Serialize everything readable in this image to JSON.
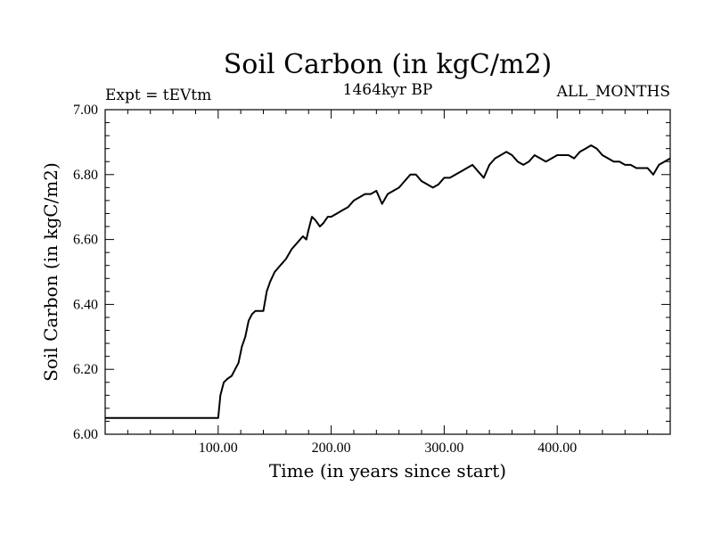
{
  "header": {
    "title": "Soil Carbon (in kgC/m2)",
    "experiment": "Expt = tEVtm",
    "period": "1464kyr BP",
    "months": "ALL_MONTHS"
  },
  "chart_data": {
    "type": "line",
    "title": "Soil Carbon (in kgC/m2)",
    "xlabel": "Time (in years since start)",
    "ylabel": "Soil Carbon (in kgC/m2)",
    "xlim": [
      0,
      500
    ],
    "ylim": [
      6.0,
      7.0
    ],
    "x_ticks": [
      100,
      200,
      300,
      400
    ],
    "x_tick_labels": [
      "100.00",
      "200.00",
      "300.00",
      "400.00"
    ],
    "y_ticks": [
      6.0,
      6.2,
      6.4,
      6.6,
      6.8,
      7.0
    ],
    "y_tick_labels": [
      "6.00",
      "6.20",
      "6.40",
      "6.60",
      "6.80",
      "7.00"
    ],
    "grid": false,
    "series": [
      {
        "name": "Soil Carbon",
        "color": "#000000",
        "x": [
          0,
          50,
          99,
          100,
          102,
          105,
          108,
          112,
          115,
          118,
          121,
          124,
          127,
          130,
          133,
          136,
          140,
          143,
          146,
          150,
          155,
          160,
          165,
          170,
          175,
          178,
          180,
          183,
          186,
          190,
          193,
          197,
          200,
          205,
          210,
          215,
          220,
          225,
          230,
          235,
          240,
          245,
          250,
          255,
          260,
          265,
          270,
          275,
          280,
          285,
          290,
          295,
          300,
          305,
          310,
          315,
          320,
          325,
          330,
          335,
          340,
          345,
          350,
          355,
          360,
          365,
          370,
          375,
          380,
          385,
          390,
          395,
          400,
          405,
          410,
          415,
          420,
          425,
          430,
          435,
          440,
          445,
          450,
          455,
          460,
          465,
          470,
          475,
          480,
          485,
          490,
          495,
          500
        ],
        "y": [
          6.05,
          6.05,
          6.05,
          6.05,
          6.12,
          6.16,
          6.17,
          6.18,
          6.2,
          6.22,
          6.27,
          6.3,
          6.35,
          6.37,
          6.38,
          6.38,
          6.38,
          6.44,
          6.47,
          6.5,
          6.52,
          6.54,
          6.57,
          6.59,
          6.61,
          6.6,
          6.63,
          6.67,
          6.66,
          6.64,
          6.65,
          6.67,
          6.67,
          6.68,
          6.69,
          6.7,
          6.72,
          6.73,
          6.74,
          6.74,
          6.75,
          6.71,
          6.74,
          6.75,
          6.76,
          6.78,
          6.8,
          6.8,
          6.78,
          6.77,
          6.76,
          6.77,
          6.79,
          6.79,
          6.8,
          6.81,
          6.82,
          6.83,
          6.81,
          6.79,
          6.83,
          6.85,
          6.86,
          6.87,
          6.86,
          6.84,
          6.83,
          6.84,
          6.86,
          6.85,
          6.84,
          6.85,
          6.86,
          6.86,
          6.86,
          6.85,
          6.87,
          6.88,
          6.89,
          6.88,
          6.86,
          6.85,
          6.84,
          6.84,
          6.83,
          6.83,
          6.82,
          6.82,
          6.82,
          6.8,
          6.83,
          6.84,
          6.85
        ]
      }
    ]
  }
}
